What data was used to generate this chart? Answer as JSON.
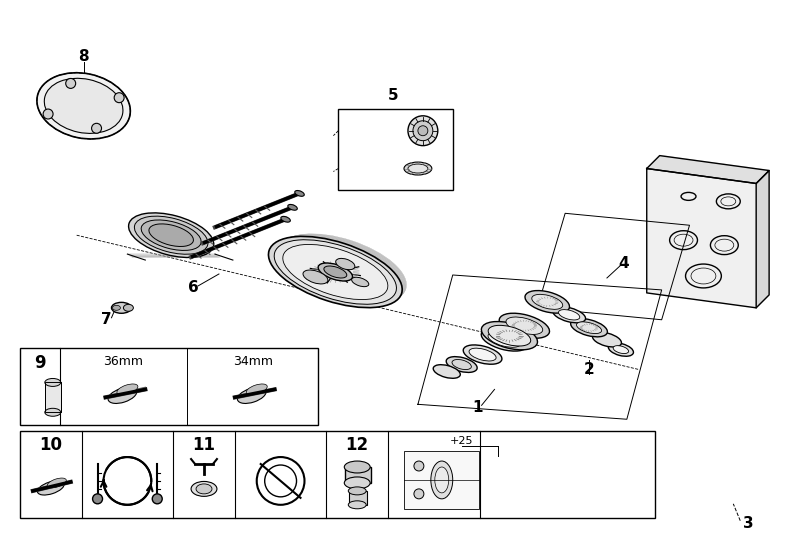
{
  "background_color": "#ffffff",
  "line_color": "#000000",
  "fig_width": 8.0,
  "fig_height": 5.45,
  "dpi": 100
}
